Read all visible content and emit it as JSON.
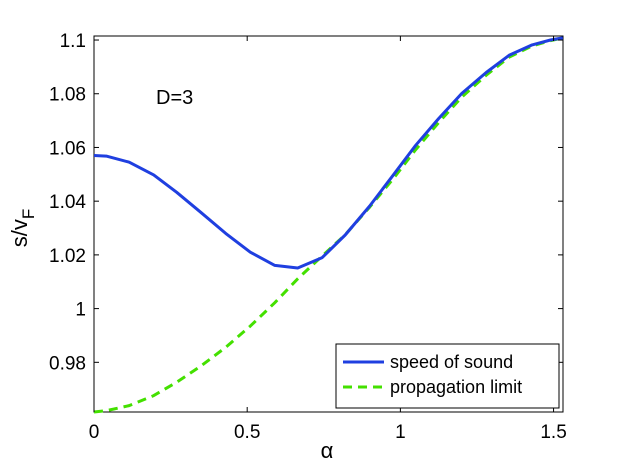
{
  "chart_data": {
    "type": "line",
    "title": "",
    "xlabel": "α",
    "ylabel_main": "s/v",
    "ylabel_sub": "F",
    "xlim": [
      0,
      1.5308
    ],
    "ylim": [
      0.9615,
      1.1015
    ],
    "xticks": [
      0,
      0.5,
      1,
      1.5
    ],
    "xtick_labels": [
      "0",
      "0.5",
      "1",
      "1.5"
    ],
    "yticks": [
      0.98,
      1.0,
      1.02,
      1.04,
      1.06,
      1.08,
      1.1
    ],
    "ytick_labels": [
      "0.98",
      "1",
      "1.02",
      "1.04",
      "1.06",
      "1.08",
      "1.1"
    ],
    "annotation": "D=3",
    "grid": false,
    "legend_position": "bottom-right",
    "series": [
      {
        "name": "speed of sound",
        "color": "#1f3fe0",
        "style": "solid",
        "x": [
          0,
          0.04,
          0.115,
          0.195,
          0.27,
          0.35,
          0.43,
          0.51,
          0.59,
          0.665,
          0.745,
          0.82,
          0.9,
          0.98,
          1.05,
          1.125,
          1.2,
          1.28,
          1.355,
          1.43,
          1.49,
          1.53
        ],
        "y": [
          1.057,
          1.0568,
          1.0545,
          1.0498,
          1.0433,
          1.0357,
          1.028,
          1.021,
          1.0161,
          1.0151,
          1.019,
          1.0274,
          1.0382,
          1.0502,
          1.0608,
          1.0708,
          1.0801,
          1.0879,
          1.0943,
          1.0982,
          1.1,
          1.1008
        ]
      },
      {
        "name": "propagation limit",
        "color": "#44e000",
        "style": "dashed",
        "x": [
          0,
          0.04,
          0.115,
          0.195,
          0.27,
          0.35,
          0.43,
          0.51,
          0.59,
          0.665,
          0.745,
          0.82,
          0.9,
          0.98,
          1.05,
          1.125,
          1.2,
          1.28,
          1.355,
          1.43,
          1.49,
          1.53
        ],
        "y": [
          0.9615,
          0.962,
          0.9639,
          0.9676,
          0.9726,
          0.9787,
          0.9856,
          0.9935,
          1.0022,
          1.0111,
          1.0196,
          1.0275,
          1.0378,
          1.0488,
          1.0592,
          1.0693,
          1.0787,
          1.0869,
          1.0936,
          1.0978,
          1.0998,
          1.1008
        ]
      }
    ]
  }
}
